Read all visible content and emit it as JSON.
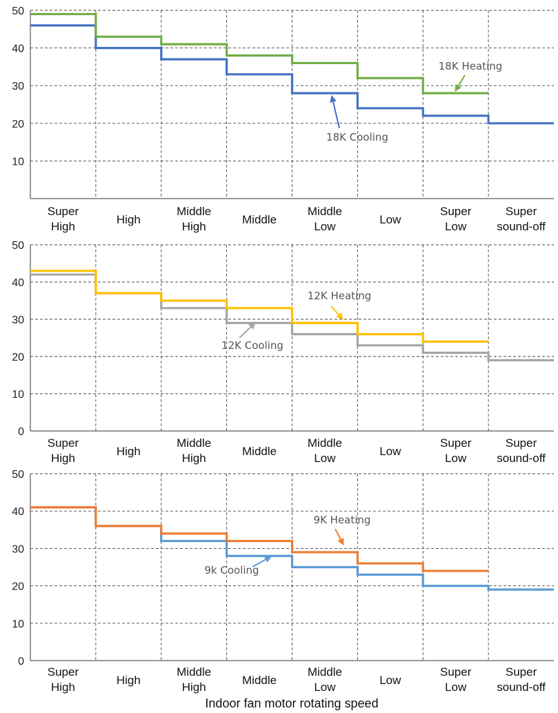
{
  "chart_data": [
    {
      "type": "line",
      "step": true,
      "title": "",
      "ylim": [
        0,
        50
      ],
      "yticks": [
        "10",
        "20",
        "30",
        "40",
        "50"
      ],
      "grid": true,
      "categories": [
        [
          "Super",
          "High"
        ],
        [
          "High"
        ],
        [
          "Middle",
          "High"
        ],
        [
          "Middle"
        ],
        [
          "Middle",
          "Low"
        ],
        [
          "Low"
        ],
        [
          "Super",
          "Low"
        ],
        [
          "Super",
          "sound-off"
        ]
      ],
      "series": [
        {
          "name": "18K Heating",
          "color": "#70ad47",
          "values": [
            49,
            43,
            41,
            38,
            36,
            32,
            28,
            null
          ]
        },
        {
          "name": "18K Cooling",
          "color": "#4472c4",
          "values": [
            46,
            40,
            37,
            33,
            28,
            24,
            22,
            20
          ]
        }
      ],
      "annotations": [
        {
          "text": "18K Heating",
          "series": 0,
          "color": "#70ad47"
        },
        {
          "text": "18K Cooling",
          "series": 1,
          "color": "#4472c4"
        }
      ]
    },
    {
      "type": "line",
      "step": true,
      "title": "",
      "ylim": [
        0,
        50
      ],
      "yticks": [
        "0",
        "10",
        "20",
        "30",
        "40",
        "50"
      ],
      "grid": true,
      "categories": [
        [
          "Super",
          "High"
        ],
        [
          "High"
        ],
        [
          "Middle",
          "High"
        ],
        [
          "Middle"
        ],
        [
          "Middle",
          "Low"
        ],
        [
          "Low"
        ],
        [
          "Super",
          "Low"
        ],
        [
          "Super",
          "sound-off"
        ]
      ],
      "series": [
        {
          "name": "12K Heating",
          "color": "#ffc000",
          "values": [
            43,
            37,
            35,
            33,
            29,
            26,
            24,
            null
          ]
        },
        {
          "name": "12K Cooling",
          "color": "#a5a5a5",
          "values": [
            42,
            37,
            33,
            29,
            26,
            23,
            21,
            19
          ]
        }
      ],
      "annotations": [
        {
          "text": "12K Heating",
          "series": 0,
          "color": "#ffc000"
        },
        {
          "text": "12K Cooling",
          "series": 1,
          "color": "#a5a5a5"
        }
      ]
    },
    {
      "type": "line",
      "step": true,
      "title": "",
      "ylim": [
        0,
        50
      ],
      "yticks": [
        "0",
        "10",
        "20",
        "30",
        "40",
        "50"
      ],
      "grid": true,
      "xlabel": "Indoor fan motor rotating speed",
      "categories": [
        [
          "Super",
          "High"
        ],
        [
          "High"
        ],
        [
          "Middle",
          "High"
        ],
        [
          "Middle"
        ],
        [
          "Middle",
          "Low"
        ],
        [
          "Low"
        ],
        [
          "Super",
          "Low"
        ],
        [
          "Super",
          "sound-off"
        ]
      ],
      "series": [
        {
          "name": "9K Heating",
          "color": "#ed7d31",
          "values": [
            41,
            36,
            34,
            32,
            29,
            26,
            24,
            null
          ]
        },
        {
          "name": "9k Cooling",
          "color": "#5b9bd5",
          "values": [
            41,
            36,
            32,
            28,
            25,
            23,
            20,
            19
          ]
        }
      ],
      "annotations": [
        {
          "text": "9K Heating",
          "series": 0,
          "color": "#ed7d31"
        },
        {
          "text": "9k Cooling",
          "series": 1,
          "color": "#5b9bd5"
        }
      ]
    }
  ]
}
